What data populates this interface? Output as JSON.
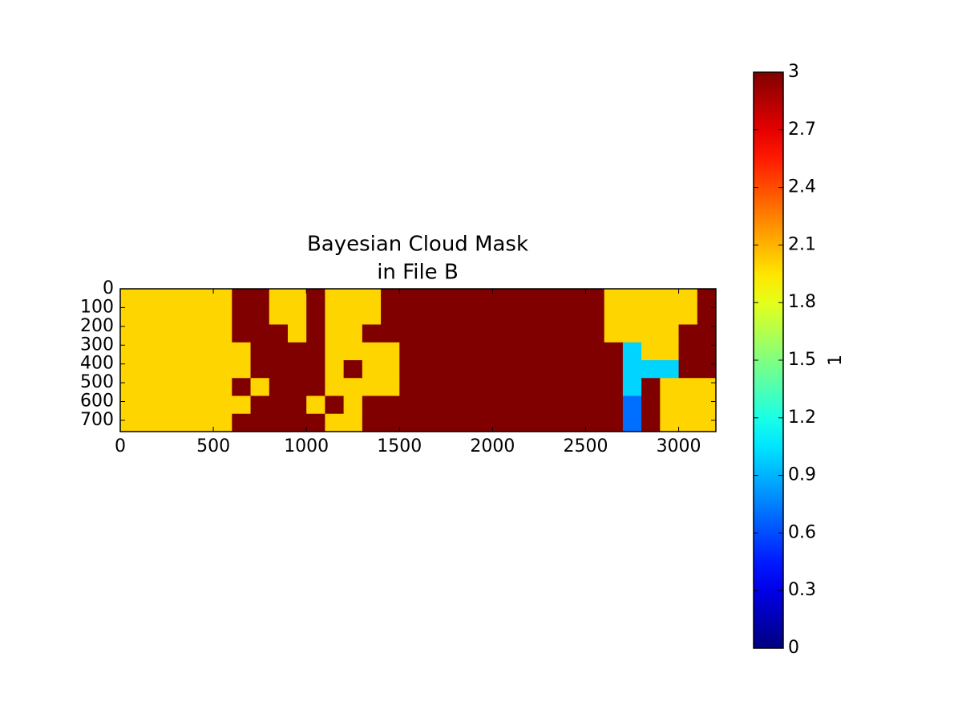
{
  "chart_data": {
    "type": "heatmap",
    "title": [
      "Bayesian Cloud Mask",
      "in File B"
    ],
    "xlim": [
      0,
      3200
    ],
    "xticks": [
      0,
      500,
      1000,
      1500,
      2000,
      2500,
      3000
    ],
    "ylim": [
      0,
      760
    ],
    "yticks": [
      0,
      100,
      200,
      300,
      400,
      500,
      600,
      700
    ],
    "y_inverted": true,
    "colormap": "jet",
    "clim": [
      0,
      3
    ],
    "cticks": [
      0,
      0.3,
      0.6,
      0.9,
      1.2,
      1.5,
      1.8,
      2.1,
      2.4,
      2.7,
      3
    ],
    "colorbar_label": "1",
    "values": [
      [
        2,
        2,
        2,
        2,
        2,
        2,
        3,
        3,
        2,
        2,
        3,
        2,
        2,
        2,
        3,
        3,
        3,
        3,
        3,
        3,
        3,
        3,
        3,
        3,
        3,
        3,
        2,
        2,
        2,
        2,
        2,
        3
      ],
      [
        2,
        2,
        2,
        2,
        2,
        2,
        3,
        3,
        2,
        2,
        3,
        2,
        2,
        2,
        3,
        3,
        3,
        3,
        3,
        3,
        3,
        3,
        3,
        3,
        3,
        3,
        2,
        2,
        2,
        2,
        2,
        3
      ],
      [
        2,
        2,
        2,
        2,
        2,
        2,
        3,
        3,
        3,
        2,
        3,
        2,
        2,
        3,
        3,
        3,
        3,
        3,
        3,
        3,
        3,
        3,
        3,
        3,
        3,
        3,
        2,
        2,
        2,
        2,
        3,
        3
      ],
      [
        2,
        2,
        2,
        2,
        2,
        2,
        2,
        3,
        3,
        3,
        3,
        2,
        2,
        2,
        2,
        3,
        3,
        3,
        3,
        3,
        3,
        3,
        3,
        3,
        3,
        3,
        3,
        1,
        2,
        2,
        3,
        3
      ],
      [
        2,
        2,
        2,
        2,
        2,
        2,
        2,
        3,
        3,
        3,
        3,
        2,
        3,
        2,
        2,
        3,
        3,
        3,
        3,
        3,
        3,
        3,
        3,
        3,
        3,
        3,
        3,
        1,
        1,
        1,
        3,
        3
      ],
      [
        2,
        2,
        2,
        2,
        2,
        2,
        3,
        2,
        3,
        3,
        3,
        2,
        2,
        2,
        2,
        3,
        3,
        3,
        3,
        3,
        3,
        3,
        3,
        3,
        3,
        3,
        3,
        1,
        3,
        2,
        2,
        2
      ],
      [
        2,
        2,
        2,
        2,
        2,
        2,
        2,
        3,
        3,
        3,
        2,
        3,
        2,
        3,
        3,
        3,
        3,
        3,
        3,
        3,
        3,
        3,
        3,
        3,
        3,
        3,
        3,
        0.7,
        3,
        2,
        2,
        2
      ],
      [
        2,
        2,
        2,
        2,
        2,
        2,
        3,
        3,
        3,
        3,
        3,
        2,
        2,
        3,
        3,
        3,
        3,
        3,
        3,
        3,
        3,
        3,
        3,
        3,
        3,
        3,
        3,
        0.7,
        3,
        2,
        2,
        2
      ]
    ]
  }
}
